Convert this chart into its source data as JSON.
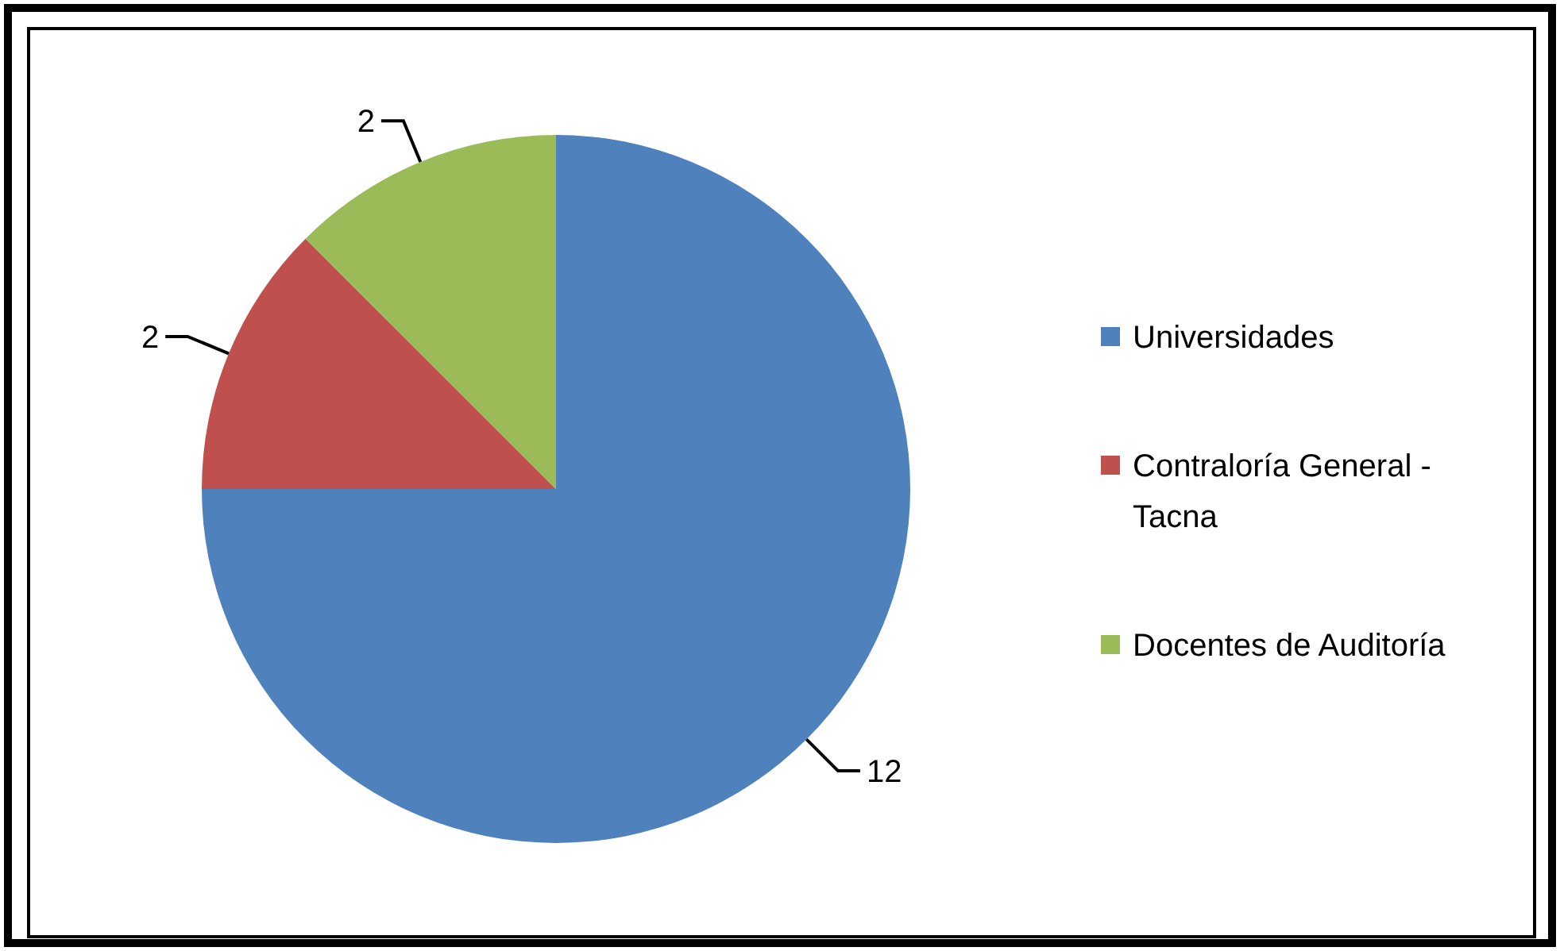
{
  "chart_data": {
    "type": "pie",
    "categories": [
      "Universidades",
      "Contraloría General - Tacna",
      "Docentes de Auditoría"
    ],
    "values": [
      12,
      2,
      2
    ],
    "colors": [
      "#4f81bd",
      "#c0504d",
      "#9bbb59"
    ],
    "data_labels": true,
    "legend": "right"
  }
}
